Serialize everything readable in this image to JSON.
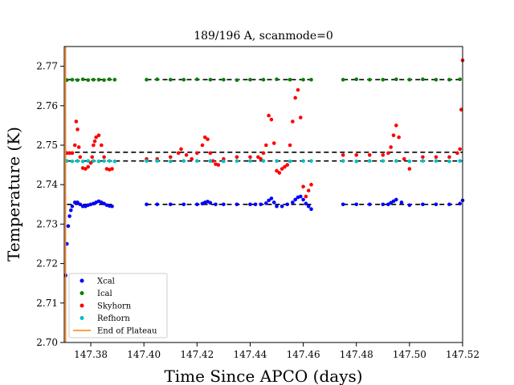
{
  "chart_data": {
    "type": "scatter",
    "title": "189/196 A, scanmode=0",
    "xlabel": "Time Since APCO (days)",
    "ylabel": "Temperature (K)",
    "xlim": [
      147.37,
      147.52
    ],
    "ylim": [
      2.7,
      2.775
    ],
    "xticks": [
      147.38,
      147.4,
      147.42,
      147.44,
      147.46,
      147.48,
      147.5,
      147.52
    ],
    "xtick_labels": [
      "147.38",
      "147.40",
      "147.42",
      "147.44",
      "147.46",
      "147.48",
      "147.50",
      "147.52"
    ],
    "yticks": [
      2.7,
      2.71,
      2.72,
      2.73,
      2.74,
      2.75,
      2.76,
      2.77
    ],
    "ytick_labels": [
      "2.70",
      "2.71",
      "2.72",
      "2.73",
      "2.74",
      "2.75",
      "2.76",
      "2.77"
    ],
    "grid": false,
    "legend_position": "lower-left",
    "series": [
      {
        "name": "Xcal",
        "color": "#0000ff",
        "x": [
          147.3705,
          147.371,
          147.3715,
          147.372,
          147.3725,
          147.373,
          147.374,
          147.375,
          147.376,
          147.377,
          147.378,
          147.379,
          147.38,
          147.381,
          147.382,
          147.383,
          147.384,
          147.385,
          147.386,
          147.387,
          147.388,
          147.401,
          147.405,
          147.41,
          147.415,
          147.42,
          147.422,
          147.423,
          147.424,
          147.425,
          147.427,
          147.43,
          147.435,
          147.44,
          147.442,
          147.444,
          147.446,
          147.447,
          147.448,
          147.449,
          147.45,
          147.452,
          147.454,
          147.456,
          147.457,
          147.458,
          147.459,
          147.46,
          147.461,
          147.462,
          147.463,
          147.475,
          147.48,
          147.485,
          147.49,
          147.492,
          147.493,
          147.494,
          147.495,
          147.497,
          147.5,
          147.505,
          147.51,
          147.515,
          147.519,
          147.52
        ],
        "y": [
          2.717,
          2.725,
          2.7295,
          2.732,
          2.7335,
          2.7345,
          2.7355,
          2.7355,
          2.735,
          2.7345,
          2.7345,
          2.7348,
          2.735,
          2.7352,
          2.7355,
          2.7358,
          2.7355,
          2.7352,
          2.7348,
          2.7346,
          2.7345,
          2.735,
          2.735,
          2.735,
          2.735,
          2.735,
          2.7352,
          2.7355,
          2.7357,
          2.7354,
          2.735,
          2.735,
          2.735,
          2.735,
          2.735,
          2.735,
          2.7353,
          2.736,
          2.7365,
          2.7355,
          2.7345,
          2.7345,
          2.735,
          2.7355,
          2.7362,
          2.7368,
          2.737,
          2.7362,
          2.7352,
          2.7345,
          2.7338,
          2.735,
          2.735,
          2.735,
          2.735,
          2.735,
          2.7354,
          2.7358,
          2.7362,
          2.7355,
          2.7348,
          2.735,
          2.735,
          2.735,
          2.7352,
          2.736
        ]
      },
      {
        "name": "Ical",
        "color": "#008000",
        "x": [
          147.371,
          147.373,
          147.375,
          147.377,
          147.379,
          147.381,
          147.383,
          147.385,
          147.387,
          147.389,
          147.401,
          147.405,
          147.41,
          147.415,
          147.42,
          147.425,
          147.43,
          147.435,
          147.44,
          147.445,
          147.45,
          147.455,
          147.46,
          147.463,
          147.475,
          147.48,
          147.485,
          147.49,
          147.495,
          147.5,
          147.505,
          147.51,
          147.515,
          147.519
        ],
        "y": [
          2.7665,
          2.7666,
          2.7665,
          2.7667,
          2.7665,
          2.7666,
          2.7666,
          2.7665,
          2.7667,
          2.7666,
          2.7666,
          2.7667,
          2.7666,
          2.7666,
          2.7667,
          2.7666,
          2.7666,
          2.7665,
          2.7666,
          2.7666,
          2.7667,
          2.7666,
          2.7666,
          2.7666,
          2.7666,
          2.7667,
          2.7666,
          2.7666,
          2.7667,
          2.7666,
          2.7667,
          2.7666,
          2.7666,
          2.7667
        ]
      },
      {
        "name": "Skyhorn",
        "color": "#ff0000",
        "x": [
          147.371,
          147.372,
          147.373,
          147.374,
          147.3745,
          147.375,
          147.3755,
          147.376,
          147.377,
          147.378,
          147.379,
          147.38,
          147.3805,
          147.381,
          147.3815,
          147.382,
          147.383,
          147.384,
          147.385,
          147.386,
          147.387,
          147.388,
          147.401,
          147.405,
          147.41,
          147.413,
          147.414,
          147.416,
          147.418,
          147.42,
          147.422,
          147.423,
          147.424,
          147.425,
          147.426,
          147.427,
          147.428,
          147.43,
          147.435,
          147.44,
          147.443,
          147.444,
          147.445,
          147.446,
          147.447,
          147.448,
          147.449,
          147.45,
          147.451,
          147.452,
          147.453,
          147.454,
          147.455,
          147.456,
          147.457,
          147.458,
          147.459,
          147.46,
          147.461,
          147.462,
          147.463,
          147.475,
          147.48,
          147.485,
          147.49,
          147.492,
          147.493,
          147.494,
          147.495,
          147.496,
          147.498,
          147.5,
          147.505,
          147.51,
          147.515,
          147.518,
          147.519,
          147.5195,
          147.52
        ],
        "y": [
          2.748,
          2.748,
          2.748,
          2.75,
          2.756,
          2.754,
          2.7495,
          2.747,
          2.7442,
          2.744,
          2.7445,
          2.7455,
          2.747,
          2.75,
          2.751,
          2.752,
          2.7525,
          2.75,
          2.747,
          2.744,
          2.7438,
          2.744,
          2.7465,
          2.7465,
          2.747,
          2.748,
          2.749,
          2.7475,
          2.7465,
          2.748,
          2.75,
          2.752,
          2.7515,
          2.748,
          2.746,
          2.7452,
          2.745,
          2.7465,
          2.747,
          2.747,
          2.747,
          2.7465,
          2.748,
          2.75,
          2.7575,
          2.7565,
          2.7505,
          2.7435,
          2.743,
          2.744,
          2.7445,
          2.745,
          2.75,
          2.756,
          2.762,
          2.764,
          2.757,
          2.7395,
          2.737,
          2.7385,
          2.74,
          2.7475,
          2.7475,
          2.7475,
          2.7475,
          2.748,
          2.7495,
          2.7525,
          2.755,
          2.752,
          2.7465,
          2.744,
          2.747,
          2.747,
          2.747,
          2.748,
          2.749,
          2.759,
          2.7715
        ]
      },
      {
        "name": "Refhorn",
        "color": "#00bfbf",
        "x": [
          147.371,
          147.373,
          147.375,
          147.377,
          147.379,
          147.381,
          147.383,
          147.385,
          147.387,
          147.389,
          147.401,
          147.405,
          147.41,
          147.415,
          147.42,
          147.425,
          147.43,
          147.435,
          147.44,
          147.445,
          147.45,
          147.455,
          147.46,
          147.463,
          147.475,
          147.48,
          147.485,
          147.49,
          147.495,
          147.5,
          147.505,
          147.51,
          147.515,
          147.519
        ],
        "y": [
          2.746,
          2.7459,
          2.746,
          2.7459,
          2.746,
          2.746,
          2.7459,
          2.746,
          2.746,
          2.7459,
          2.746,
          2.746,
          2.7459,
          2.746,
          2.746,
          2.746,
          2.7459,
          2.746,
          2.746,
          2.746,
          2.746,
          2.7459,
          2.746,
          2.746,
          2.746,
          2.7459,
          2.746,
          2.746,
          2.746,
          2.7459,
          2.746,
          2.746,
          2.7459,
          2.746
        ]
      }
    ],
    "reference_lines": {
      "style": "dashed",
      "color": "#000000",
      "lines": [
        {
          "y": 2.7666,
          "segments": [
            [
              147.371,
              147.389
            ],
            [
              147.401,
              147.463
            ],
            [
              147.475,
              147.52
            ]
          ]
        },
        {
          "y": 2.7482,
          "segments": [
            [
              147.371,
              147.52
            ]
          ]
        },
        {
          "y": 2.746,
          "segments": [
            [
              147.371,
              147.52
            ]
          ]
        },
        {
          "y": 2.735,
          "segments": [
            [
              147.371,
              147.389
            ],
            [
              147.401,
              147.463
            ],
            [
              147.475,
              147.52
            ]
          ]
        }
      ]
    },
    "vertical_line": {
      "name": "End of Plateau",
      "x": 147.3705,
      "color": "#ff7f0e"
    },
    "legend": [
      {
        "label": "Xcal",
        "color": "#0000ff",
        "marker": "dot"
      },
      {
        "label": "Ical",
        "color": "#008000",
        "marker": "dot"
      },
      {
        "label": "Skyhorn",
        "color": "#ff0000",
        "marker": "dot"
      },
      {
        "label": "Refhorn",
        "color": "#00bfbf",
        "marker": "dot"
      },
      {
        "label": "End of Plateau",
        "color": "#ff7f0e",
        "marker": "line"
      }
    ]
  }
}
